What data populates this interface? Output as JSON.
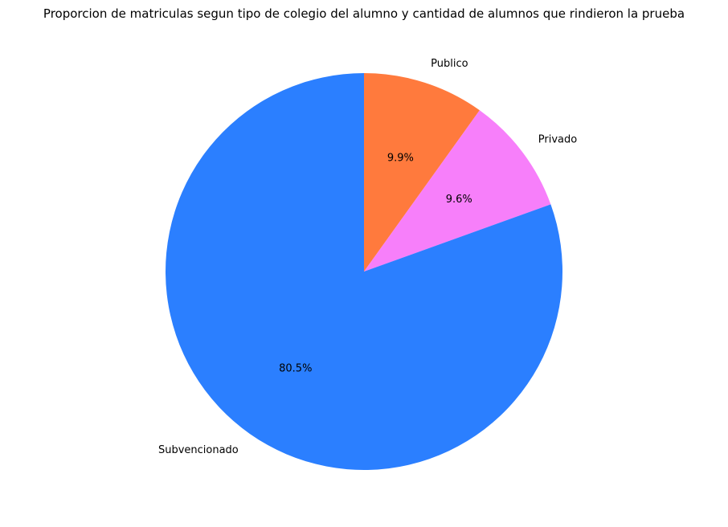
{
  "chart_data": {
    "type": "pie",
    "title": "Proporcion de matriculas segun tipo de colegio del alumno y cantidad de alumnos que rindieron la prueba",
    "categories": [
      "Publico",
      "Privado",
      "Subvencionado"
    ],
    "values": [
      9.9,
      9.6,
      80.5
    ],
    "percent_labels": [
      "9.9%",
      "9.6%",
      "80.5%"
    ],
    "colors": [
      "#ff7a3d",
      "#f77ffa",
      "#2b7fff"
    ],
    "start_angle": "top (90°)",
    "direction": "clockwise",
    "legend": "none"
  }
}
